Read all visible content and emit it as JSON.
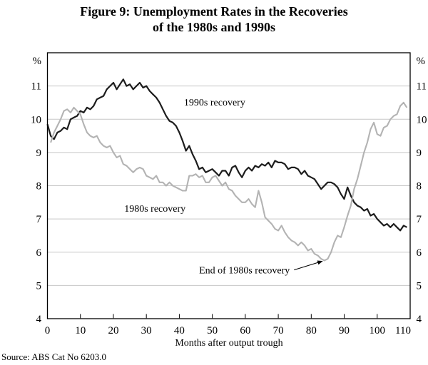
{
  "title": {
    "line1": "Figure 9: Unemployment Rates in the Recoveries",
    "line2": "of the 1980s and 1990s"
  },
  "source": "Source: ABS Cat No 6203.0",
  "chart_data": {
    "type": "line",
    "title": "Figure 9: Unemployment Rates in the Recoveries of the 1980s and 1990s",
    "xlabel": "Months after output trough",
    "ylabel_left": "%",
    "ylabel_right": "%",
    "xlim": [
      0,
      110
    ],
    "ylim": [
      4,
      12
    ],
    "grid": true,
    "gridlines_at": [
      5,
      6,
      7,
      8,
      9,
      10,
      11
    ],
    "x_ticks": [
      0,
      10,
      20,
      30,
      40,
      50,
      60,
      70,
      80,
      90,
      100,
      110
    ],
    "y_tick_labels": [
      4,
      5,
      6,
      7,
      8,
      9,
      10,
      11
    ],
    "legend_position": "inline labels on chart",
    "series": [
      {
        "id": "1990s",
        "name": "1990s recovery",
        "color": "#1c1c1c",
        "x_start": 0,
        "values": [
          9.85,
          9.5,
          9.4,
          9.6,
          9.65,
          9.75,
          9.7,
          10.0,
          10.05,
          10.1,
          10.25,
          10.2,
          10.35,
          10.3,
          10.4,
          10.6,
          10.65,
          10.7,
          10.9,
          11.0,
          11.1,
          10.9,
          11.05,
          11.2,
          11.0,
          11.05,
          10.9,
          11.0,
          11.1,
          10.95,
          11.0,
          10.85,
          10.75,
          10.65,
          10.5,
          10.3,
          10.1,
          9.95,
          9.9,
          9.8,
          9.6,
          9.35,
          9.05,
          9.2,
          8.95,
          8.75,
          8.5,
          8.55,
          8.4,
          8.45,
          8.5,
          8.4,
          8.3,
          8.45,
          8.45,
          8.3,
          8.55,
          8.6,
          8.4,
          8.25,
          8.45,
          8.55,
          8.45,
          8.6,
          8.55,
          8.65,
          8.6,
          8.7,
          8.55,
          8.75,
          8.7,
          8.7,
          8.65,
          8.5,
          8.55,
          8.55,
          8.5,
          8.35,
          8.45,
          8.3,
          8.25,
          8.2,
          8.05,
          7.9,
          8.0,
          8.1,
          8.1,
          8.05,
          7.95,
          7.75,
          7.6,
          7.95,
          7.7,
          7.5,
          7.4,
          7.35,
          7.25,
          7.3,
          7.1,
          7.15,
          7.0,
          6.9,
          6.8,
          6.85,
          6.75,
          6.85,
          6.75,
          6.65,
          6.8,
          6.75
        ]
      },
      {
        "id": "1980s",
        "name": "1980s recovery",
        "color": "#b3b3b3",
        "x_start": 1,
        "values": [
          9.3,
          9.6,
          9.8,
          10.0,
          10.25,
          10.3,
          10.2,
          10.35,
          10.25,
          10.15,
          9.85,
          9.6,
          9.5,
          9.45,
          9.5,
          9.3,
          9.2,
          9.15,
          9.2,
          9.0,
          8.85,
          8.9,
          8.65,
          8.6,
          8.5,
          8.4,
          8.5,
          8.55,
          8.5,
          8.3,
          8.25,
          8.2,
          8.3,
          8.1,
          8.1,
          8.0,
          8.1,
          8.0,
          7.95,
          7.9,
          7.85,
          7.85,
          8.3,
          8.3,
          8.35,
          8.25,
          8.3,
          8.1,
          8.1,
          8.25,
          8.3,
          8.15,
          8.0,
          8.1,
          7.9,
          7.85,
          7.7,
          7.6,
          7.5,
          7.5,
          7.6,
          7.45,
          7.35,
          7.85,
          7.5,
          7.05,
          6.95,
          6.85,
          6.7,
          6.65,
          6.8,
          6.6,
          6.45,
          6.35,
          6.3,
          6.2,
          6.3,
          6.2,
          6.05,
          6.1,
          5.95,
          5.9,
          5.8,
          5.75,
          5.8,
          6.0,
          6.3,
          6.5,
          6.45,
          6.75,
          7.1,
          7.4,
          7.9,
          8.2,
          8.6,
          9.0,
          9.3,
          9.7,
          9.9,
          9.55,
          9.5,
          9.75,
          9.8,
          10.0,
          10.1,
          10.15,
          10.4,
          10.5,
          10.35
        ]
      }
    ],
    "annotations": [
      {
        "id": "label-1990s",
        "text": "1990s recovery",
        "month": 50.7,
        "value": 10.41,
        "anchor": "middle"
      },
      {
        "id": "label-1980s",
        "text": "1980s recovery",
        "month": 32.6,
        "value": 7.22,
        "anchor": "middle"
      },
      {
        "id": "end-of-1980s-recovery",
        "text": "End of 1980s recovery",
        "month": 73.5,
        "value": 5.36,
        "anchor": "end",
        "arrow_to": {
          "month": 84,
          "value": 5.78
        }
      }
    ]
  }
}
